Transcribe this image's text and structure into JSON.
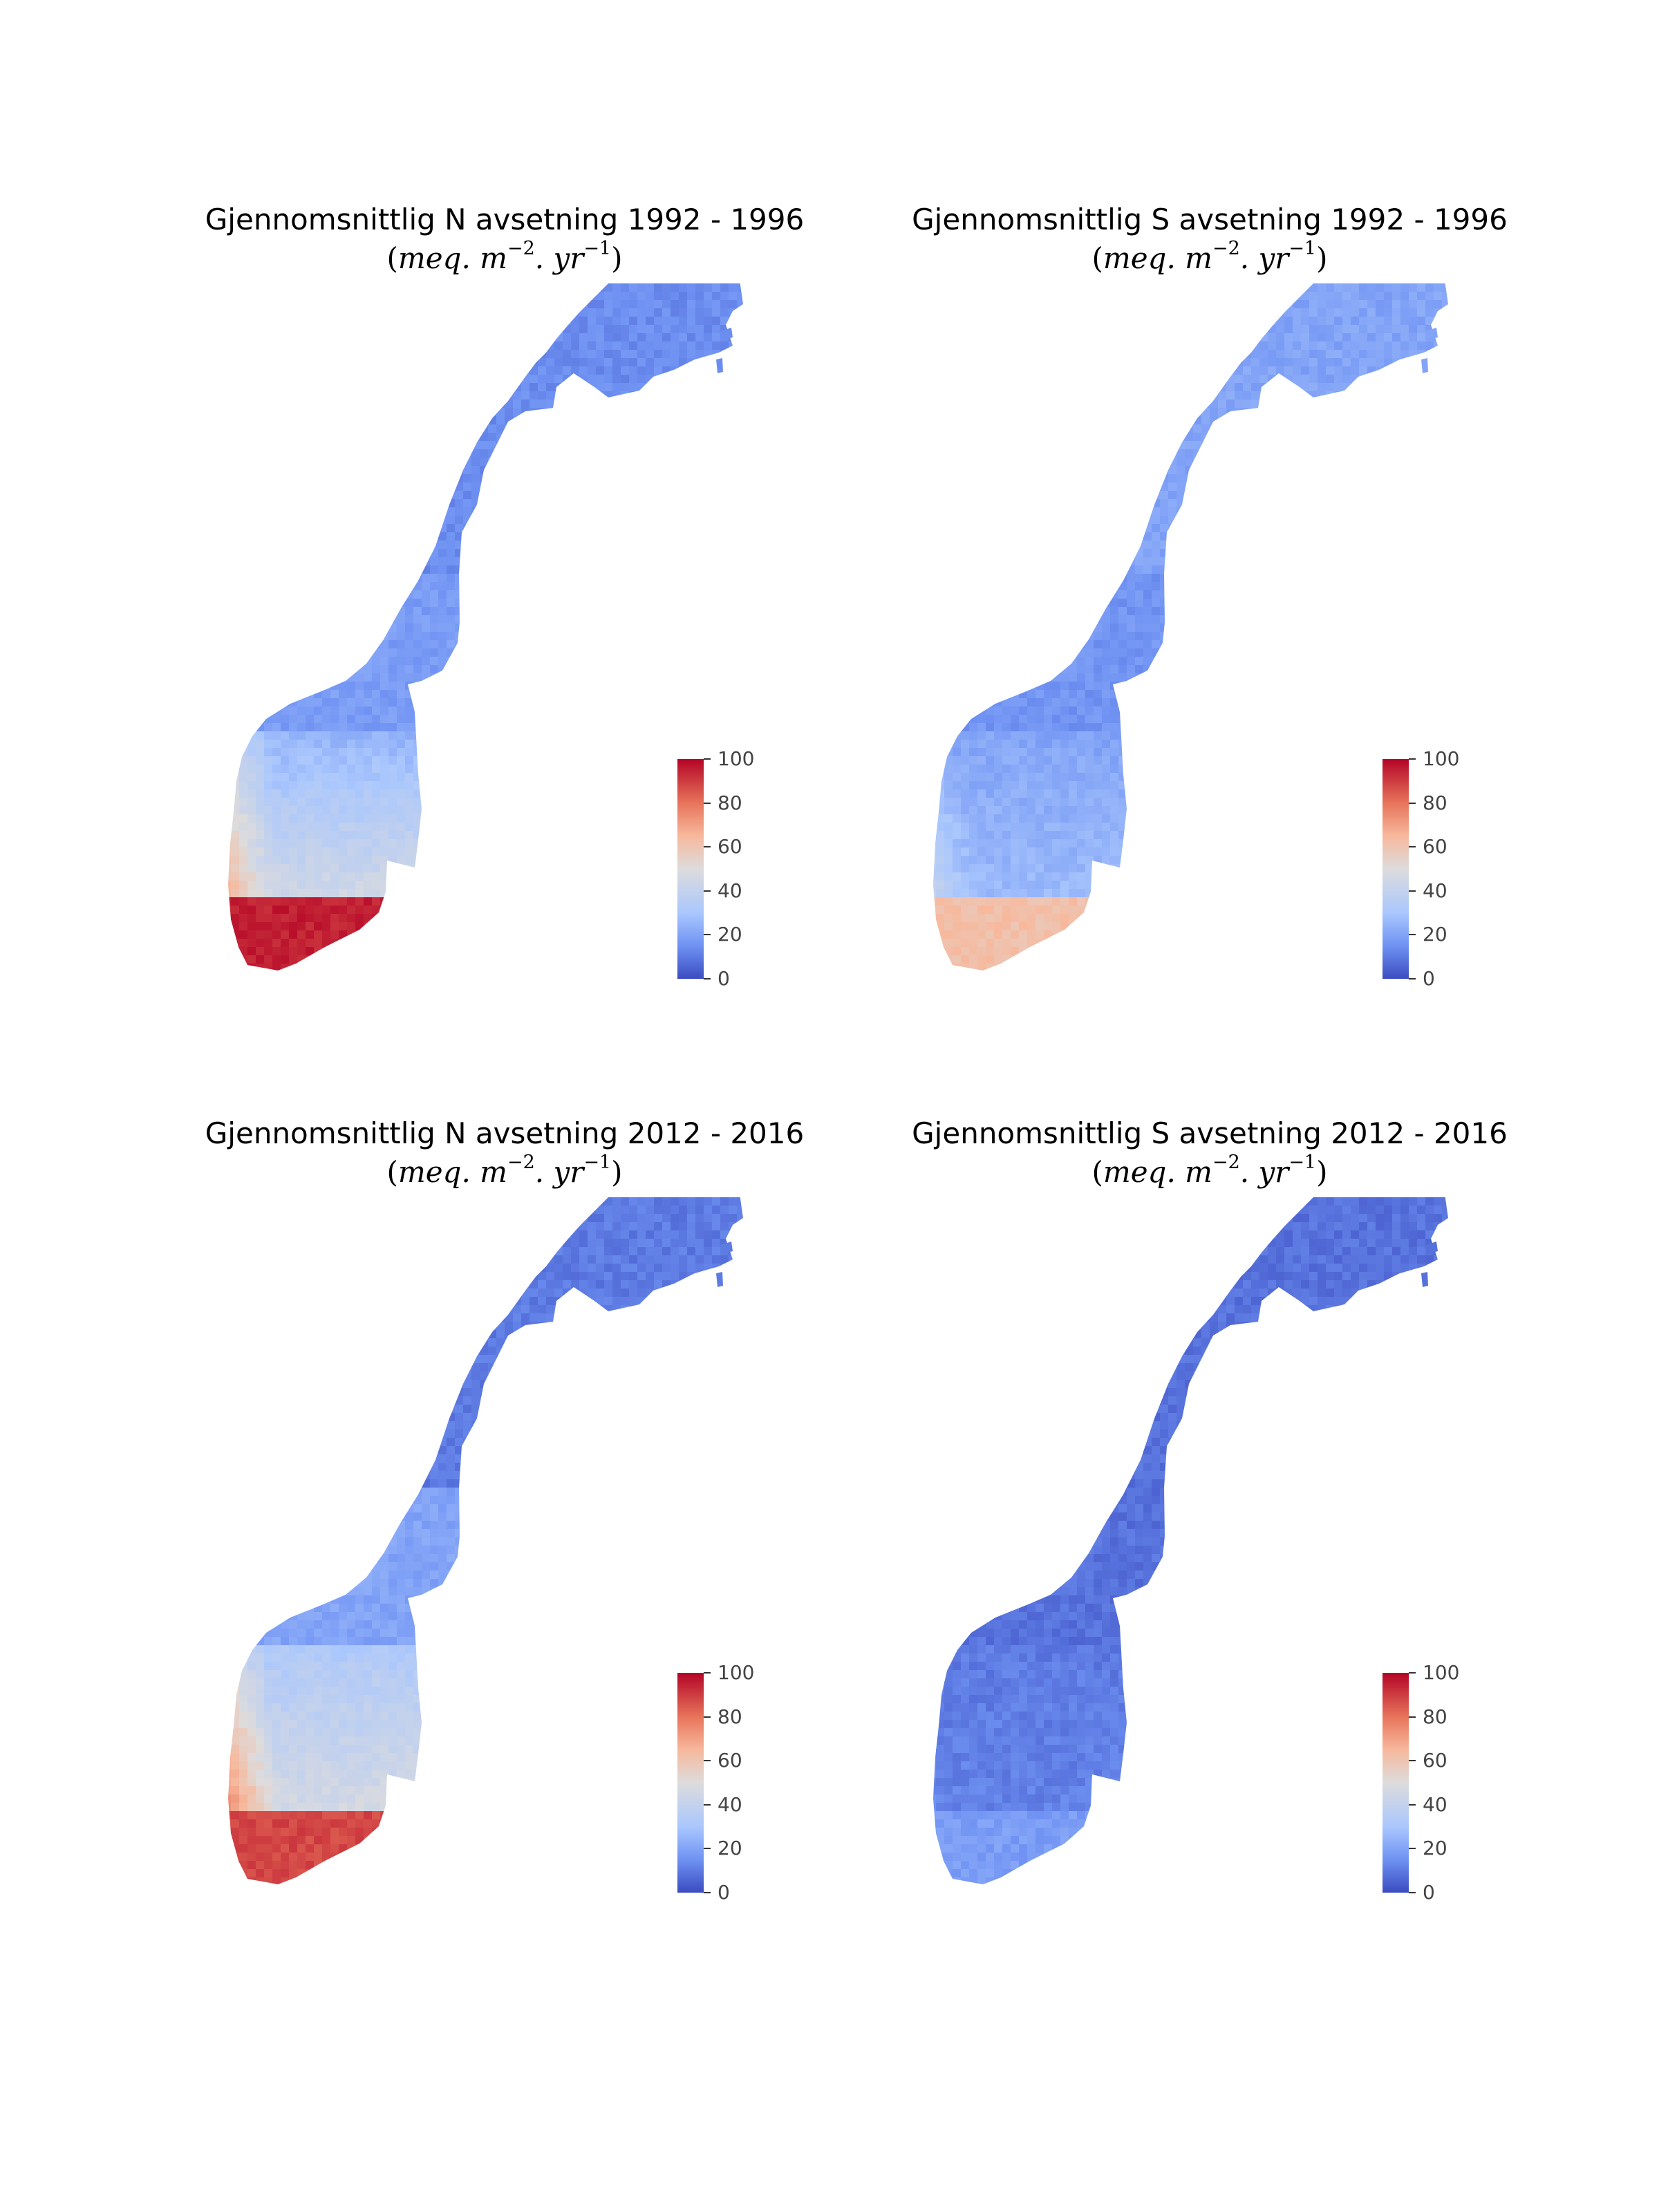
{
  "panels": [
    {
      "title": "Gjennomsnittlig N avsetning 1992 - 1996",
      "unit": {
        "open": "(",
        "base": "meq. m",
        "exp1": "−2",
        "mid": ". yr",
        "exp2": "−1",
        "close": ")"
      },
      "colorbar": {
        "ticks": [
          "0",
          "20",
          "40",
          "60",
          "80",
          "100"
        ],
        "min": 0,
        "max": 100
      },
      "region_levels": {
        "north": 0.14,
        "mid": 0.18,
        "east": 0.24,
        "west_coast": 0.7,
        "south_east": 0.5,
        "south_tip": 0.95
      }
    },
    {
      "title": "Gjennomsnittlig S avsetning 1992 - 1996",
      "unit": {
        "open": "(",
        "base": "meq. m",
        "exp1": "−2",
        "mid": ". yr",
        "exp2": "−1",
        "close": ")"
      },
      "colorbar": {
        "ticks": [
          "0",
          "20",
          "40",
          "60",
          "80",
          "100"
        ],
        "min": 0,
        "max": 100
      },
      "region_levels": {
        "north": 0.2,
        "mid": 0.16,
        "east": 0.2,
        "west_coast": 0.42,
        "south_east": 0.28,
        "south_tip": 0.62
      }
    },
    {
      "title": "Gjennomsnittlig N avsetning 2012 - 2016",
      "unit": {
        "open": "(",
        "base": "meq. m",
        "exp1": "−2",
        "mid": ". yr",
        "exp2": "−1",
        "close": ")"
      },
      "colorbar": {
        "ticks": [
          "0",
          "20",
          "40",
          "60",
          "80",
          "100"
        ],
        "min": 0,
        "max": 100
      },
      "region_levels": {
        "north": 0.1,
        "mid": 0.2,
        "east": 0.32,
        "west_coast": 0.8,
        "south_east": 0.5,
        "south_tip": 0.88
      }
    },
    {
      "title": "Gjennomsnittlig S avsetning 2012 - 2016",
      "unit": {
        "open": "(",
        "base": "meq. m",
        "exp1": "−2",
        "mid": ". yr",
        "exp2": "−1",
        "close": ")"
      },
      "colorbar": {
        "ticks": [
          "0",
          "20",
          "40",
          "60",
          "80",
          "100"
        ],
        "min": 0,
        "max": 100
      },
      "region_levels": {
        "north": 0.08,
        "mid": 0.08,
        "east": 0.1,
        "west_coast": 0.14,
        "south_east": 0.12,
        "south_tip": 0.18
      }
    }
  ]
}
